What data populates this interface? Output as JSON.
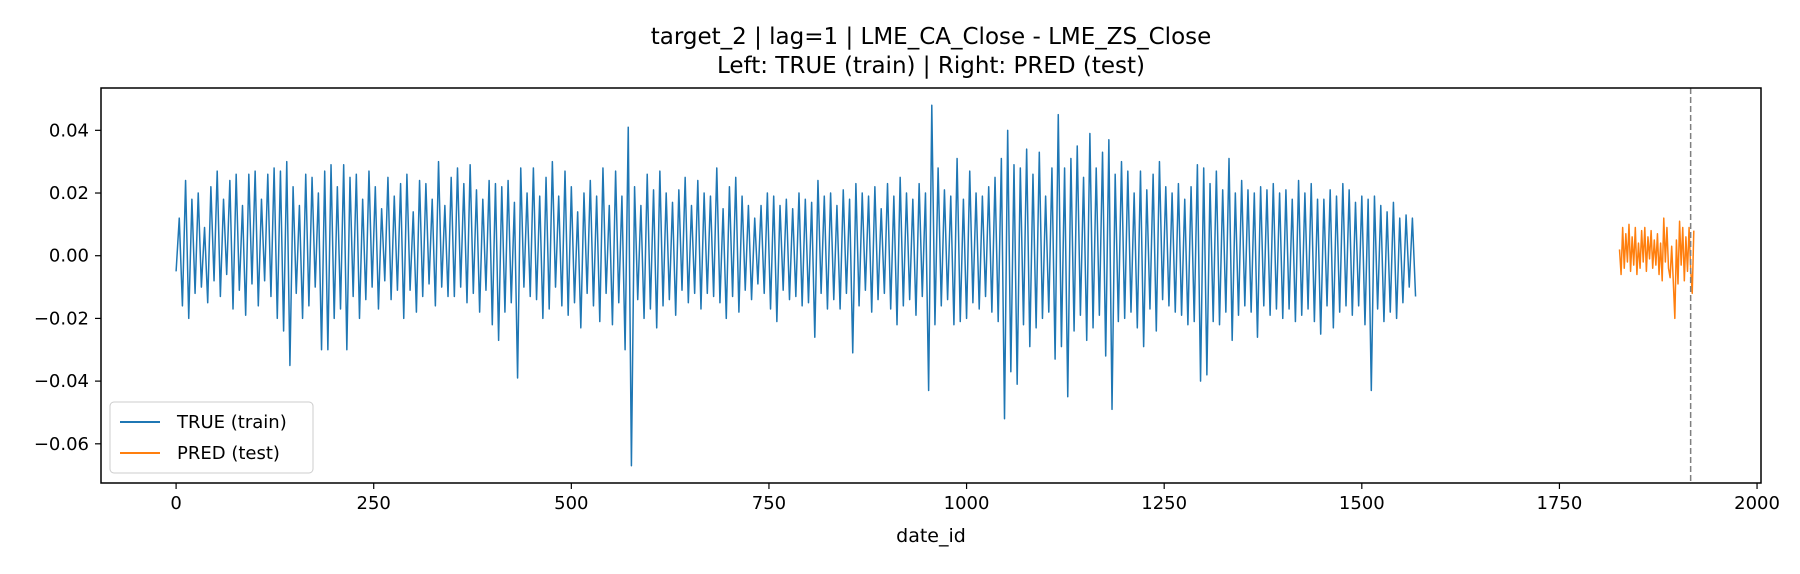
{
  "chart_data": {
    "type": "line",
    "title": "target_2 | lag=1 | LME_CA_Close - LME_ZS_Close",
    "subtitle": "Left: TRUE (train) | Right: PRED (test)",
    "xlabel": "date_id",
    "ylabel": "",
    "xlim": [
      -95,
      2005
    ],
    "ylim": [
      -0.0725,
      0.0535
    ],
    "xticks": [
      0,
      250,
      500,
      750,
      1000,
      1250,
      1500,
      1750,
      2000
    ],
    "xtick_labels": [
      "0",
      "250",
      "500",
      "750",
      "1000",
      "1250",
      "1500",
      "1750",
      "2000"
    ],
    "yticks": [
      -0.06,
      -0.04,
      -0.02,
      0.0,
      0.02,
      0.04
    ],
    "ytick_labels": [
      "−0.06",
      "−0.04",
      "−0.02",
      "0.00",
      "0.02",
      "0.04"
    ],
    "grid": false,
    "legend_position": "lower-left",
    "vline_x": 1916,
    "series": [
      {
        "name": "TRUE (train)",
        "color": "#1f77b4",
        "x_start": 0,
        "x_step": 4,
        "values": [
          -0.005,
          0.012,
          -0.016,
          0.024,
          -0.02,
          0.018,
          -0.012,
          0.02,
          -0.01,
          0.009,
          -0.015,
          0.022,
          -0.008,
          0.027,
          -0.013,
          0.018,
          -0.006,
          0.024,
          -0.017,
          0.026,
          -0.011,
          0.016,
          -0.019,
          0.026,
          -0.009,
          0.027,
          -0.016,
          0.018,
          -0.008,
          0.026,
          -0.013,
          0.028,
          -0.02,
          0.027,
          -0.024,
          0.03,
          -0.035,
          0.022,
          -0.012,
          0.016,
          -0.02,
          0.026,
          -0.016,
          0.025,
          -0.01,
          0.02,
          -0.03,
          0.027,
          -0.03,
          0.029,
          -0.02,
          0.022,
          -0.017,
          0.029,
          -0.03,
          0.025,
          -0.013,
          0.026,
          -0.02,
          0.018,
          -0.014,
          0.027,
          -0.01,
          0.022,
          -0.017,
          0.015,
          -0.008,
          0.025,
          -0.014,
          0.019,
          -0.011,
          0.023,
          -0.02,
          0.026,
          -0.011,
          0.014,
          -0.018,
          0.024,
          -0.013,
          0.023,
          -0.009,
          0.018,
          -0.016,
          0.03,
          -0.01,
          0.016,
          -0.013,
          0.025,
          -0.013,
          0.028,
          -0.01,
          0.023,
          -0.015,
          0.029,
          -0.012,
          0.021,
          -0.018,
          0.018,
          -0.011,
          0.024,
          -0.022,
          0.023,
          -0.027,
          0.022,
          -0.018,
          0.024,
          -0.015,
          0.017,
          -0.039,
          0.028,
          -0.01,
          0.02,
          -0.013,
          0.028,
          -0.014,
          0.019,
          -0.02,
          0.025,
          -0.017,
          0.03,
          -0.01,
          0.019,
          -0.016,
          0.027,
          -0.019,
          0.022,
          -0.015,
          0.014,
          -0.023,
          0.02,
          -0.012,
          0.024,
          -0.016,
          0.019,
          -0.021,
          0.028,
          -0.012,
          0.016,
          -0.022,
          0.027,
          -0.015,
          0.019,
          -0.03,
          0.041,
          -0.067,
          0.022,
          -0.014,
          0.016,
          -0.02,
          0.026,
          -0.017,
          0.021,
          -0.023,
          0.027,
          -0.016,
          0.02,
          -0.014,
          0.017,
          -0.019,
          0.021,
          -0.011,
          0.025,
          -0.015,
          0.016,
          -0.012,
          0.024,
          -0.017,
          0.02,
          -0.012,
          0.019,
          -0.013,
          0.028,
          -0.015,
          0.015,
          -0.02,
          0.022,
          -0.013,
          0.025,
          -0.018,
          0.019,
          -0.011,
          0.016,
          -0.014,
          0.012,
          -0.009,
          0.016,
          -0.012,
          0.02,
          -0.017,
          0.019,
          -0.021,
          0.016,
          -0.011,
          0.018,
          -0.014,
          0.015,
          -0.013,
          0.02,
          -0.016,
          0.018,
          -0.015,
          0.017,
          -0.026,
          0.024,
          -0.012,
          0.019,
          -0.017,
          0.02,
          -0.014,
          0.016,
          -0.017,
          0.021,
          -0.012,
          0.018,
          -0.031,
          0.023,
          -0.016,
          0.02,
          -0.011,
          0.019,
          -0.018,
          0.022,
          -0.014,
          0.015,
          -0.012,
          0.023,
          -0.017,
          0.019,
          -0.022,
          0.025,
          -0.016,
          0.02,
          -0.014,
          0.018,
          -0.019,
          0.023,
          -0.013,
          0.02,
          -0.043,
          0.048,
          -0.022,
          0.028,
          -0.016,
          0.021,
          -0.014,
          0.019,
          -0.022,
          0.031,
          -0.021,
          0.018,
          -0.02,
          0.027,
          -0.015,
          0.02,
          -0.017,
          0.019,
          -0.013,
          0.022,
          -0.018,
          0.025,
          -0.021,
          0.031,
          -0.052,
          0.04,
          -0.037,
          0.029,
          -0.041,
          0.028,
          -0.022,
          0.034,
          -0.029,
          0.026,
          -0.023,
          0.033,
          -0.02,
          0.019,
          -0.018,
          0.028,
          -0.033,
          0.045,
          -0.029,
          0.028,
          -0.045,
          0.031,
          -0.024,
          0.035,
          -0.019,
          0.025,
          -0.027,
          0.039,
          -0.023,
          0.028,
          -0.019,
          0.033,
          -0.032,
          0.037,
          -0.049,
          0.026,
          -0.021,
          0.03,
          -0.02,
          0.027,
          -0.018,
          0.02,
          -0.023,
          0.027,
          -0.029,
          0.021,
          -0.017,
          0.026,
          -0.024,
          0.03,
          -0.014,
          0.022,
          -0.016,
          0.02,
          -0.018,
          0.023,
          -0.019,
          0.018,
          -0.022,
          0.022,
          -0.021,
          0.029,
          -0.04,
          0.028,
          -0.038,
          0.023,
          -0.021,
          0.027,
          -0.022,
          0.021,
          -0.018,
          0.031,
          -0.027,
          0.02,
          -0.019,
          0.024,
          -0.016,
          0.021,
          -0.018,
          0.02,
          -0.026,
          0.022,
          -0.016,
          0.021,
          -0.019,
          0.023,
          -0.017,
          0.02,
          -0.02,
          0.021,
          -0.017,
          0.018,
          -0.021,
          0.024,
          -0.019,
          0.02,
          -0.017,
          0.023,
          -0.021,
          0.018,
          -0.025,
          0.018,
          -0.016,
          0.021,
          -0.023,
          0.019,
          -0.018,
          0.023,
          -0.016,
          0.021,
          -0.019,
          0.017,
          -0.016,
          0.019,
          -0.022,
          0.018,
          -0.043,
          0.019,
          -0.017,
          0.016,
          -0.021,
          0.014,
          -0.018,
          0.017,
          -0.02,
          0.012,
          -0.015,
          0.013,
          -0.01,
          0.012,
          -0.013
        ]
      },
      {
        "name": "PRED (test)",
        "color": "#ff7f0e",
        "x_start": 1826,
        "x_step": 2,
        "values": [
          0.002,
          -0.006,
          0.009,
          -0.004,
          0.007,
          -0.002,
          0.01,
          -0.005,
          0.006,
          -0.003,
          0.009,
          -0.006,
          0.004,
          -0.004,
          0.008,
          -0.002,
          0.009,
          -0.005,
          0.006,
          -0.001,
          0.008,
          -0.004,
          0.005,
          -0.003,
          0.007,
          -0.006,
          0.004,
          -0.008,
          0.012,
          -0.002,
          0.009,
          -0.004,
          -0.007,
          0.003,
          -0.008,
          -0.02,
          0.005,
          -0.009,
          0.011,
          -0.003,
          0.009,
          -0.008,
          0.006,
          -0.005,
          0.009,
          -0.004,
          -0.012,
          0.008
        ]
      }
    ]
  }
}
